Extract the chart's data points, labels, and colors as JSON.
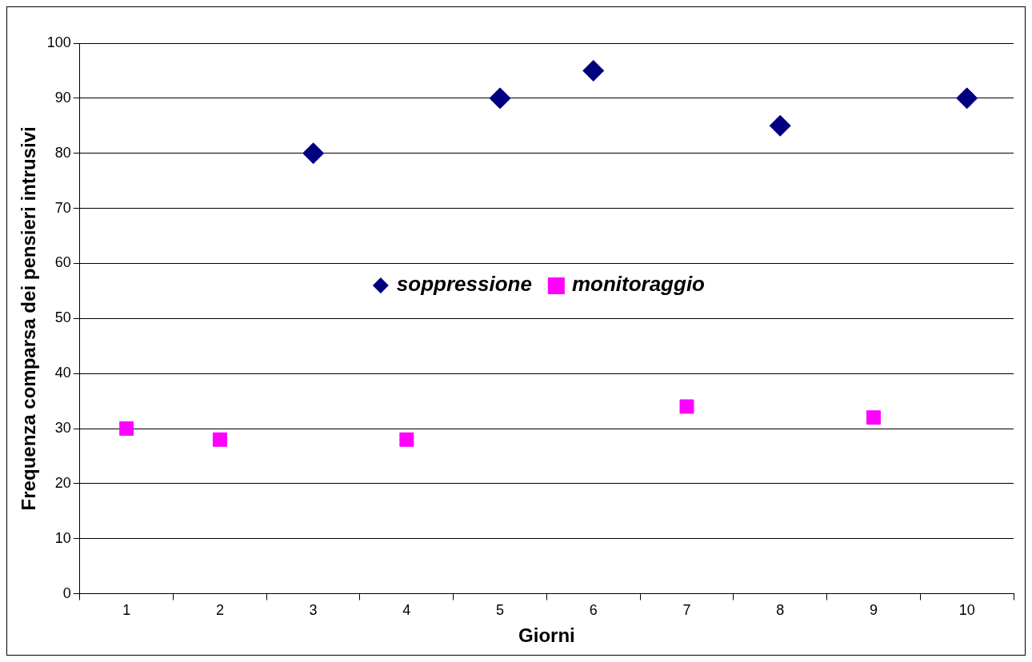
{
  "chart_data": {
    "type": "scatter",
    "xlabel": "Giorni",
    "ylabel": "Frequenza comparsa dei pensieri intrusivi",
    "categories": [
      "1",
      "2",
      "3",
      "4",
      "5",
      "6",
      "7",
      "8",
      "9",
      "10"
    ],
    "ylim": [
      0,
      100
    ],
    "yticks": [
      0,
      10,
      20,
      30,
      40,
      50,
      60,
      70,
      80,
      90,
      100
    ],
    "grid": "y",
    "legend": "center",
    "series": [
      {
        "name": "soppressione",
        "color": "#000080",
        "marker": "diamond",
        "values": [
          null,
          null,
          80,
          null,
          90,
          95,
          null,
          85,
          null,
          90
        ]
      },
      {
        "name": "monitoraggio",
        "color": "#ff00ff",
        "marker": "square",
        "values": [
          30,
          28,
          null,
          28,
          null,
          null,
          34,
          null,
          32,
          null
        ]
      }
    ]
  }
}
